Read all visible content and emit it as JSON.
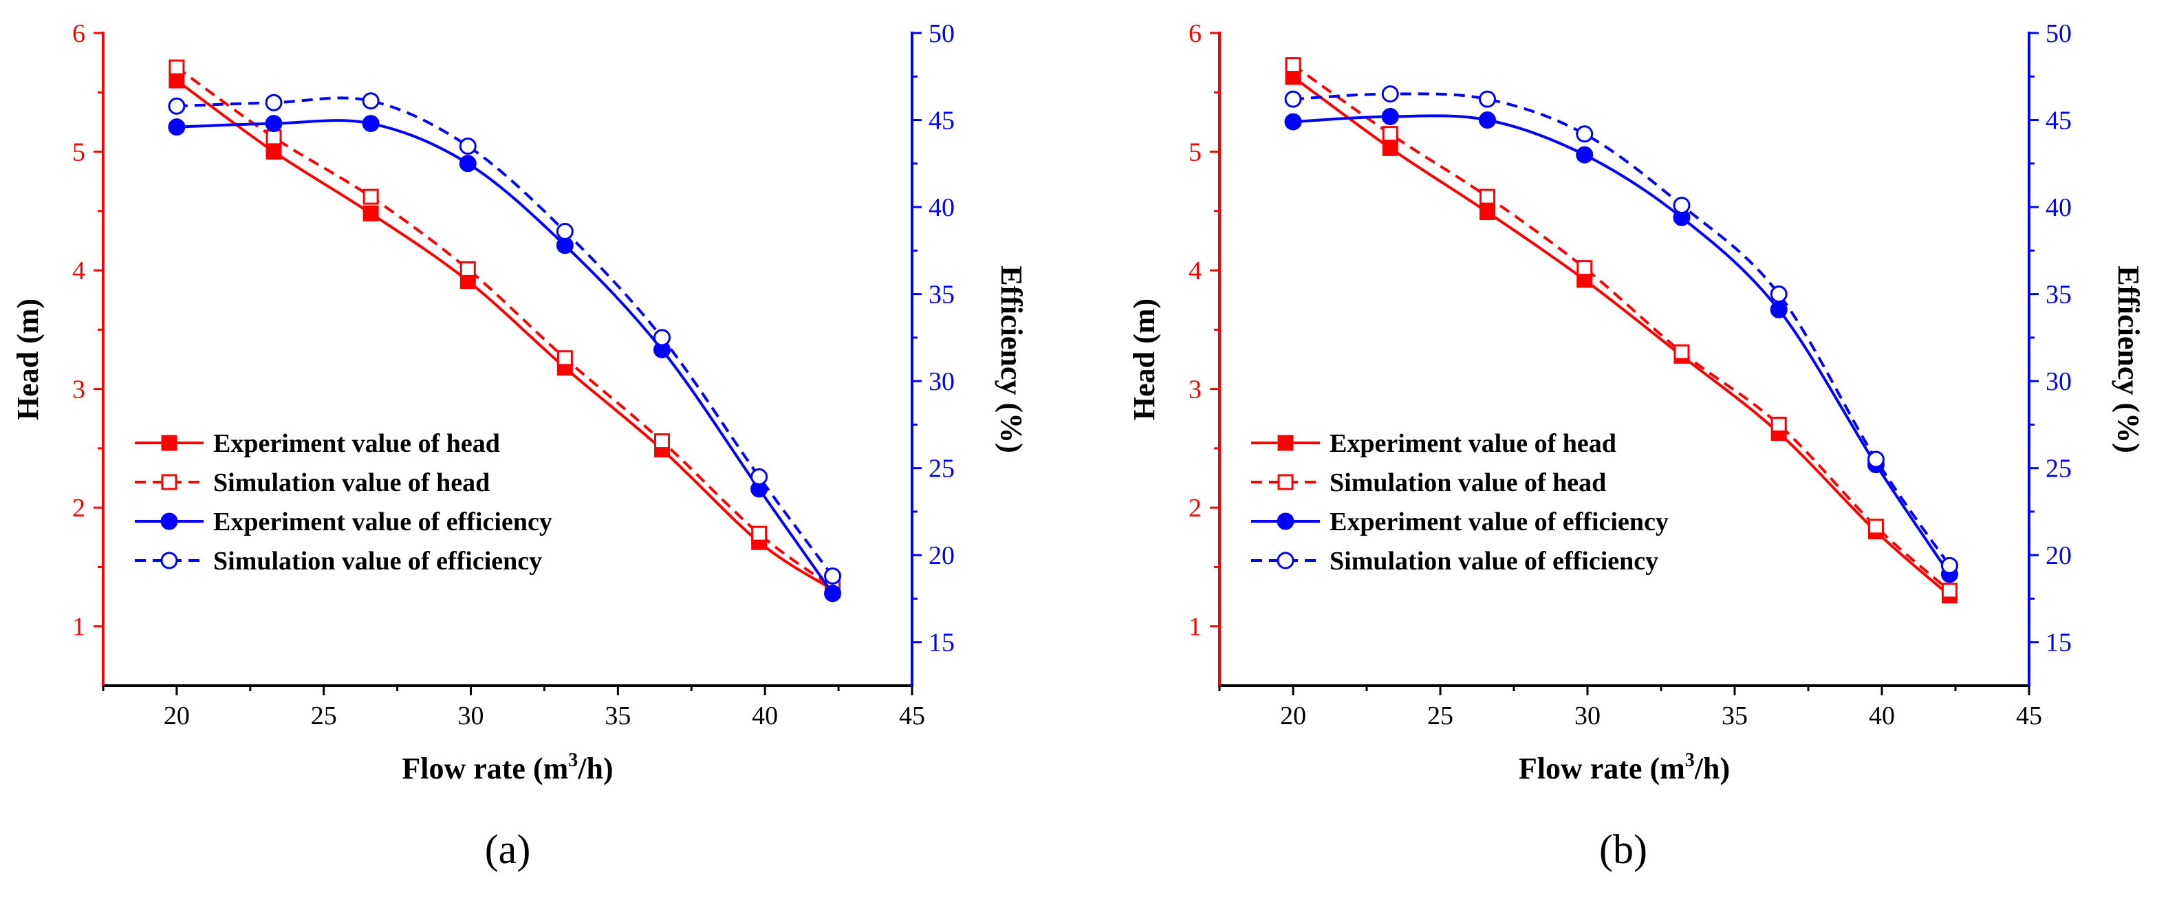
{
  "colors": {
    "head": "#ff0000",
    "efficiency": "#0000ff",
    "axis": "#000000"
  },
  "chart_data": [
    {
      "type": "line",
      "panel_label": "(a)",
      "xlabel": "Flow rate (m",
      "xlabel_sup": "3",
      "xlabel_tail": "/h)",
      "ylabel_left": "Head (m)",
      "ylabel_right": "Efficiency (%)",
      "xlim": [
        17.5,
        45
      ],
      "ylim_left": [
        0.5,
        6
      ],
      "ylim_right": [
        12.5,
        50
      ],
      "xticks": [
        20,
        25,
        30,
        35,
        40,
        45
      ],
      "yticks_left": [
        1,
        2,
        3,
        4,
        5,
        6
      ],
      "yticks_right": [
        15,
        20,
        25,
        30,
        35,
        40,
        45,
        50
      ],
      "series": [
        {
          "name": "Experiment value of head",
          "axis": "left",
          "style": "solid",
          "marker": "square-filled",
          "color": "#ff0000",
          "x": [
            20,
            23.3,
            26.6,
            29.9,
            33.2,
            36.5,
            39.8,
            42.3
          ],
          "values": [
            5.6,
            5.0,
            4.48,
            3.91,
            3.18,
            2.49,
            1.71,
            1.31
          ]
        },
        {
          "name": "Simulation value of head",
          "axis": "left",
          "style": "dashed",
          "marker": "square-open",
          "color": "#ff0000",
          "x": [
            20,
            23.3,
            26.6,
            29.9,
            33.2,
            36.5,
            39.8,
            42.3
          ],
          "values": [
            5.71,
            5.12,
            4.62,
            4.01,
            3.26,
            2.56,
            1.78,
            1.33
          ]
        },
        {
          "name": "Experiment value of efficiency",
          "axis": "right",
          "style": "solid",
          "marker": "circle-filled",
          "color": "#0000ff",
          "x": [
            20,
            23.3,
            26.6,
            29.9,
            33.2,
            36.5,
            39.8,
            42.3
          ],
          "values": [
            44.6,
            44.8,
            44.8,
            42.5,
            37.8,
            31.8,
            23.8,
            17.8
          ]
        },
        {
          "name": "Simulation value of efficiency",
          "axis": "right",
          "style": "dashed",
          "marker": "circle-open",
          "color": "#0000ff",
          "x": [
            20,
            23.3,
            26.6,
            29.9,
            33.2,
            36.5,
            39.8,
            42.3
          ],
          "values": [
            45.8,
            46.0,
            46.1,
            43.5,
            38.6,
            32.5,
            24.5,
            18.8
          ]
        }
      ]
    },
    {
      "type": "line",
      "panel_label": "(b)",
      "xlabel": "Flow rate (m",
      "xlabel_sup": "3",
      "xlabel_tail": "/h)",
      "ylabel_left": "Head (m)",
      "ylabel_right": "Efficiency (%)",
      "xlim": [
        17.5,
        45
      ],
      "ylim_left": [
        0.5,
        6
      ],
      "ylim_right": [
        12.5,
        50
      ],
      "xticks": [
        20,
        25,
        30,
        35,
        40,
        45
      ],
      "yticks_left": [
        1,
        2,
        3,
        4,
        5,
        6
      ],
      "yticks_right": [
        15,
        20,
        25,
        30,
        35,
        40,
        45,
        50
      ],
      "series": [
        {
          "name": "Experiment value of head",
          "axis": "left",
          "style": "solid",
          "marker": "square-filled",
          "color": "#ff0000",
          "x": [
            20,
            23.3,
            26.6,
            29.9,
            33.2,
            36.5,
            39.8,
            42.3
          ],
          "values": [
            5.63,
            5.03,
            4.49,
            3.92,
            3.28,
            2.63,
            1.8,
            1.26
          ]
        },
        {
          "name": "Simulation value of head",
          "axis": "left",
          "style": "dashed",
          "marker": "square-open",
          "color": "#ff0000",
          "x": [
            20,
            23.3,
            26.6,
            29.9,
            33.2,
            36.5,
            39.8,
            42.3
          ],
          "values": [
            5.73,
            5.15,
            4.62,
            4.02,
            3.31,
            2.7,
            1.84,
            1.3
          ]
        },
        {
          "name": "Experiment value of efficiency",
          "axis": "right",
          "style": "solid",
          "marker": "circle-filled",
          "color": "#0000ff",
          "x": [
            20,
            23.3,
            26.6,
            29.9,
            33.2,
            36.5,
            39.8,
            42.3
          ],
          "values": [
            44.9,
            45.2,
            45.0,
            43.0,
            39.4,
            34.1,
            25.2,
            18.9
          ]
        },
        {
          "name": "Simulation value of efficiency",
          "axis": "right",
          "style": "dashed",
          "marker": "circle-open",
          "color": "#0000ff",
          "x": [
            20,
            23.3,
            26.6,
            29.9,
            33.2,
            36.5,
            39.8,
            42.3
          ],
          "values": [
            46.2,
            46.5,
            46.2,
            44.2,
            40.1,
            35.0,
            25.5,
            19.4
          ]
        }
      ]
    }
  ]
}
